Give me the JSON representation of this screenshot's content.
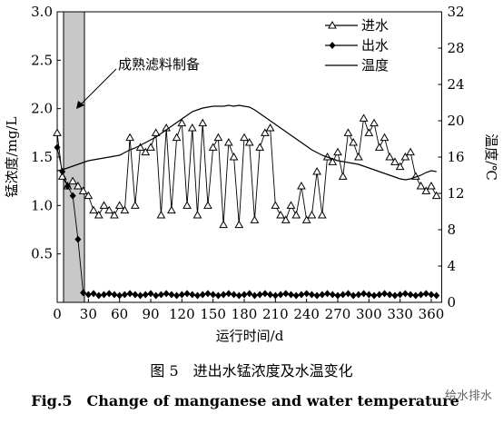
{
  "chart_data": {
    "type": "line",
    "xlabel": "运行时间/d",
    "ylabel": "锰浓度/mg/L",
    "y2label": "温度/℃",
    "annotation": "成熟滤料制备",
    "caption": "图 5　进出水锰浓度及水温变化",
    "caption_en": "Fig.5　Change of manganese and water temperature",
    "watermark": "给水排水",
    "x": [
      0,
      5,
      10,
      15,
      20,
      25,
      30,
      35,
      40,
      45,
      50,
      55,
      60,
      65,
      70,
      75,
      80,
      85,
      90,
      95,
      100,
      105,
      110,
      115,
      120,
      125,
      130,
      135,
      140,
      145,
      150,
      155,
      160,
      165,
      170,
      175,
      180,
      185,
      190,
      195,
      200,
      205,
      210,
      215,
      220,
      225,
      230,
      235,
      240,
      245,
      250,
      255,
      260,
      265,
      270,
      275,
      280,
      285,
      290,
      295,
      300,
      305,
      310,
      315,
      320,
      325,
      330,
      335,
      340,
      345,
      350,
      355,
      360,
      365
    ],
    "series": [
      {
        "name": "进水",
        "color": "#000",
        "marker": "triangle",
        "values": [
          1.75,
          1.3,
          1.2,
          1.25,
          1.2,
          1.15,
          1.1,
          0.95,
          0.9,
          1.0,
          0.95,
          0.9,
          1.0,
          0.95,
          1.7,
          1.0,
          1.6,
          1.55,
          1.6,
          1.75,
          0.9,
          1.8,
          0.95,
          1.7,
          1.85,
          1.0,
          1.8,
          0.9,
          1.85,
          1.0,
          1.6,
          1.7,
          0.8,
          1.65,
          1.5,
          0.8,
          1.7,
          1.65,
          0.85,
          1.6,
          1.75,
          1.8,
          1.0,
          0.9,
          0.85,
          1.0,
          0.9,
          1.2,
          0.85,
          0.9,
          1.35,
          0.9,
          1.5,
          1.45,
          1.55,
          1.3,
          1.75,
          1.65,
          1.5,
          1.9,
          1.75,
          1.85,
          1.6,
          1.7,
          1.5,
          1.45,
          1.4,
          1.5,
          1.55,
          1.3,
          1.2,
          1.15,
          1.2,
          1.1
        ]
      },
      {
        "name": "出水",
        "color": "#000",
        "marker": "diamond",
        "values": [
          1.6,
          1.35,
          1.2,
          1.1,
          0.65,
          0.1,
          0.08,
          0.09,
          0.07,
          0.08,
          0.09,
          0.08,
          0.07,
          0.08,
          0.09,
          0.08,
          0.07,
          0.08,
          0.09,
          0.07,
          0.08,
          0.09,
          0.08,
          0.07,
          0.08,
          0.09,
          0.08,
          0.07,
          0.08,
          0.09,
          0.08,
          0.07,
          0.08,
          0.09,
          0.08,
          0.07,
          0.08,
          0.09,
          0.07,
          0.08,
          0.09,
          0.08,
          0.07,
          0.08,
          0.09,
          0.08,
          0.07,
          0.08,
          0.09,
          0.08,
          0.07,
          0.08,
          0.09,
          0.08,
          0.07,
          0.08,
          0.09,
          0.07,
          0.08,
          0.09,
          0.08,
          0.07,
          0.08,
          0.09,
          0.08,
          0.07,
          0.08,
          0.09,
          0.08,
          0.07,
          0.08,
          0.09,
          0.08,
          0.07
        ]
      },
      {
        "name": "温度",
        "color": "#000",
        "marker": "none",
        "axis": "y2",
        "values": [
          14.5,
          14.6,
          14.8,
          15.0,
          15.2,
          15.4,
          15.6,
          15.7,
          15.8,
          15.9,
          16.0,
          16.1,
          16.2,
          16.5,
          16.8,
          17.0,
          17.3,
          17.6,
          17.9,
          18.2,
          18.6,
          19.0,
          19.4,
          19.8,
          20.2,
          20.6,
          21.0,
          21.2,
          21.4,
          21.5,
          21.6,
          21.6,
          21.6,
          21.7,
          21.6,
          21.7,
          21.6,
          21.5,
          21.2,
          20.8,
          20.4,
          20.0,
          19.6,
          19.2,
          18.8,
          18.4,
          18.0,
          17.6,
          17.2,
          16.8,
          16.5,
          16.2,
          16.0,
          15.8,
          15.6,
          15.5,
          15.4,
          15.3,
          15.2,
          15.0,
          14.8,
          14.6,
          14.4,
          14.2,
          14.0,
          13.8,
          13.6,
          13.5,
          13.6,
          13.8,
          14.0,
          14.3,
          14.5,
          14.4
        ]
      }
    ],
    "xlim": [
      0,
      370
    ],
    "ylim": [
      0,
      3
    ],
    "y2lim": [
      0,
      32
    ],
    "xticks": [
      0,
      30,
      60,
      90,
      120,
      150,
      180,
      210,
      240,
      270,
      300,
      330,
      360
    ],
    "yticks": [
      0.5,
      {
        "value": 1,
        "label": "1.0"
      },
      1.5,
      {
        "value": 2,
        "label": "2.0"
      },
      2.5,
      {
        "value": 3,
        "label": "3.0"
      }
    ],
    "y2ticks": [
      0,
      4,
      8,
      12,
      16,
      20,
      24,
      28,
      32
    ],
    "legend": "upper right"
  }
}
